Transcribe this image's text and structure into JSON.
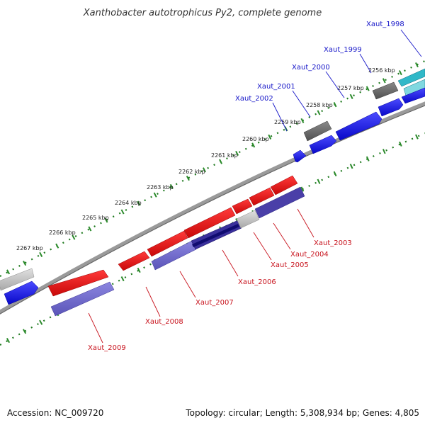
{
  "title": "Xanthobacter autotrophicus Py2, complete genome",
  "footer": {
    "accession": "Accession: NC_009720",
    "topology": "Topology: circular; Length: 5,308,934 bp; Genes: 4,805"
  },
  "ticks": [
    {
      "label": "2267 kbp"
    },
    {
      "label": "2266 kbp"
    },
    {
      "label": "2265 kbp"
    },
    {
      "label": "2264 kbp"
    },
    {
      "label": "2263 kbp"
    },
    {
      "label": "2262 kbp"
    },
    {
      "label": "2261 kbp"
    },
    {
      "label": "2260 kbp"
    },
    {
      "label": "2259 kbp"
    },
    {
      "label": "2258 kbp"
    },
    {
      "label": "2257 kbp"
    },
    {
      "label": "2256 kbp"
    }
  ],
  "genes": [
    {
      "name": "Xaut_1998",
      "strand": "forward"
    },
    {
      "name": "Xaut_1999",
      "strand": "forward"
    },
    {
      "name": "Xaut_2000",
      "strand": "forward"
    },
    {
      "name": "Xaut_2001",
      "strand": "forward"
    },
    {
      "name": "Xaut_2002",
      "strand": "forward"
    },
    {
      "name": "Xaut_2003",
      "strand": "reverse"
    },
    {
      "name": "Xaut_2004",
      "strand": "reverse"
    },
    {
      "name": "Xaut_2005",
      "strand": "reverse"
    },
    {
      "name": "Xaut_2006",
      "strand": "reverse"
    },
    {
      "name": "Xaut_2007",
      "strand": "reverse"
    },
    {
      "name": "Xaut_2008",
      "strand": "reverse"
    },
    {
      "name": "Xaut_2009",
      "strand": "reverse"
    }
  ],
  "colors": {
    "forward_cds": "#1010ee",
    "reverse_cds": "#ee1010",
    "gc_skew": "#6a64c8",
    "gc_dark": "#2a2480",
    "unknown": "#c0c0c0",
    "rna": "#606060",
    "cyan": "#30b8c8",
    "backbone": "#808080",
    "tick": "#2a8a2a"
  }
}
